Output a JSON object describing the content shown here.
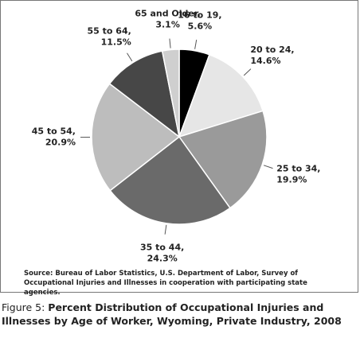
{
  "chart_data": {
    "type": "pie",
    "categories": [
      "16 to 19,",
      "20 to 24,",
      "25 to 34,",
      "35 to 44,",
      "45 to 54,",
      "55 to 64,",
      "65 and Older,"
    ],
    "values": [
      5.6,
      14.6,
      19.9,
      24.3,
      20.9,
      11.5,
      3.1
    ],
    "value_labels": [
      "5.6%",
      "14.6%",
      "19.9%",
      "24.3%",
      "20.9%",
      "11.5%",
      "3.1%"
    ],
    "colors": [
      "#000000",
      "#e6e6e6",
      "#9a9a9a",
      "#6a6a6a",
      "#bdbdbd",
      "#474747",
      "#cfcfcf"
    ],
    "source": "Source: Bureau of Labor Statistics, U.S. Department of Labor, Survey of Occupational Injuries and Illnesses in cooperation with participating state agencies.",
    "figure_label": "Figure 5:",
    "title": "Percent Distribution of Occupational Injuries and Illnesses by Age of Worker, Wyoming, Private Industry, 2008"
  }
}
